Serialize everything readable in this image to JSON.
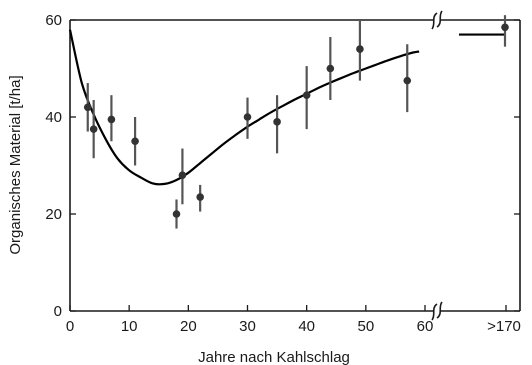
{
  "chart_data": {
    "type": "scatter",
    "title": "",
    "xlabel": "Jahre nach Kahlschlag",
    "ylabel": "Organisches Material [t/ha]",
    "xlim": [
      0,
      60
    ],
    "ylim": [
      0,
      60
    ],
    "x_break_label": ">170",
    "x_ticks": [
      {
        "value": 0,
        "label": "0"
      },
      {
        "value": 10,
        "label": "10"
      },
      {
        "value": 20,
        "label": "20"
      },
      {
        "value": 30,
        "label": "30"
      },
      {
        "value": 40,
        "label": "40"
      },
      {
        "value": 50,
        "label": "50"
      },
      {
        "value": 60,
        "label": "60"
      }
    ],
    "y_ticks": [
      {
        "value": 0,
        "label": "0"
      },
      {
        "value": 20,
        "label": "20"
      },
      {
        "value": 40,
        "label": "40"
      },
      {
        "value": 60,
        "label": "60"
      }
    ],
    "points": [
      {
        "x": 3,
        "y": 42,
        "err_low": 37,
        "err_high": 47
      },
      {
        "x": 4,
        "y": 37.5,
        "err_low": 31.5,
        "err_high": 43.5
      },
      {
        "x": 7,
        "y": 39.5,
        "err_low": 35,
        "err_high": 44.5
      },
      {
        "x": 11,
        "y": 35,
        "err_low": 30,
        "err_high": 40
      },
      {
        "x": 18,
        "y": 20,
        "err_low": 17,
        "err_high": 23
      },
      {
        "x": 19,
        "y": 28,
        "err_low": 22,
        "err_high": 33.5
      },
      {
        "x": 22,
        "y": 23.5,
        "err_low": 20.5,
        "err_high": 26
      },
      {
        "x": 30,
        "y": 40,
        "err_low": 35.5,
        "err_high": 44
      },
      {
        "x": 35,
        "y": 39,
        "err_low": 32.5,
        "err_high": 44.5
      },
      {
        "x": 40,
        "y": 44.5,
        "err_low": 37.5,
        "err_high": 50.5
      },
      {
        "x": 44,
        "y": 50,
        "err_low": 43.5,
        "err_high": 56.5
      },
      {
        "x": 49,
        "y": 54,
        "err_low": 47.5,
        "err_high": 60
      },
      {
        "x": 57,
        "y": 47.5,
        "err_low": 41,
        "err_high": 55
      }
    ],
    "break_point": {
      "x_label": ">170",
      "y": 58.5,
      "err_low": 54.5,
      "err_high": 61
    },
    "fitted_curve": [
      [
        0,
        58
      ],
      [
        2,
        47
      ],
      [
        4,
        40.5
      ],
      [
        6,
        35.5
      ],
      [
        8,
        31.5
      ],
      [
        10,
        29
      ],
      [
        12,
        27.5
      ],
      [
        14,
        26.3
      ],
      [
        16,
        26.2
      ],
      [
        18,
        27
      ],
      [
        20,
        28.5
      ],
      [
        22,
        30.5
      ],
      [
        24,
        32.5
      ],
      [
        26,
        34.5
      ],
      [
        28,
        36.3
      ],
      [
        30,
        38
      ],
      [
        32,
        39.5
      ],
      [
        34,
        41
      ],
      [
        36,
        42.3
      ],
      [
        38,
        43.6
      ],
      [
        40,
        44.8
      ],
      [
        42,
        46
      ],
      [
        44,
        47.1
      ],
      [
        46,
        48.1
      ],
      [
        48,
        49.1
      ],
      [
        50,
        50
      ],
      [
        52,
        50.9
      ],
      [
        54,
        51.8
      ],
      [
        56,
        52.6
      ],
      [
        58,
        53.3
      ],
      [
        59,
        53.5
      ]
    ],
    "break_line_y": [
      57,
      57
    ],
    "grid": false,
    "legend": "none",
    "colors": {
      "point": "#333333",
      "errorbar": "#555555",
      "curve": "#000000",
      "axis": "#1a1a1a"
    }
  }
}
